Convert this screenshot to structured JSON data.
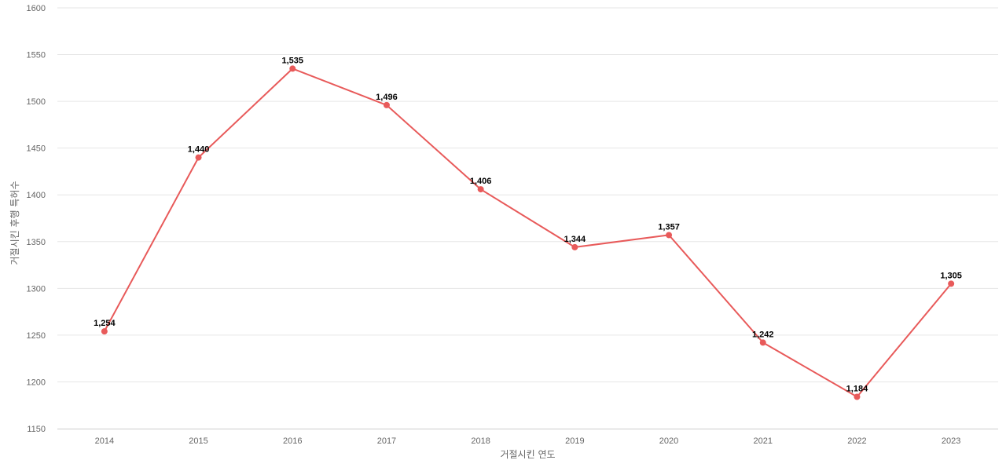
{
  "chart_data": {
    "type": "line",
    "title": "",
    "xlabel": "거절시킨 연도",
    "ylabel": "거절시킨 후행 특허수",
    "x": [
      "2014",
      "2015",
      "2016",
      "2017",
      "2018",
      "2019",
      "2020",
      "2021",
      "2022",
      "2023"
    ],
    "series": [
      {
        "values": [
          1254,
          1440,
          1535,
          1496,
          1406,
          1344,
          1357,
          1242,
          1184,
          1305
        ],
        "labels": [
          "1,254",
          "1,440",
          "1,535",
          "1,496",
          "1,406",
          "1,344",
          "1,357",
          "1,242",
          "1,184",
          "1,305"
        ],
        "color": "#e85a5a"
      }
    ],
    "ylim": [
      1150,
      1600
    ],
    "yticks": [
      "1150",
      "1200",
      "1250",
      "1300",
      "1350",
      "1400",
      "1450",
      "1500",
      "1550",
      "1600"
    ],
    "grid": true,
    "legend": "none"
  }
}
